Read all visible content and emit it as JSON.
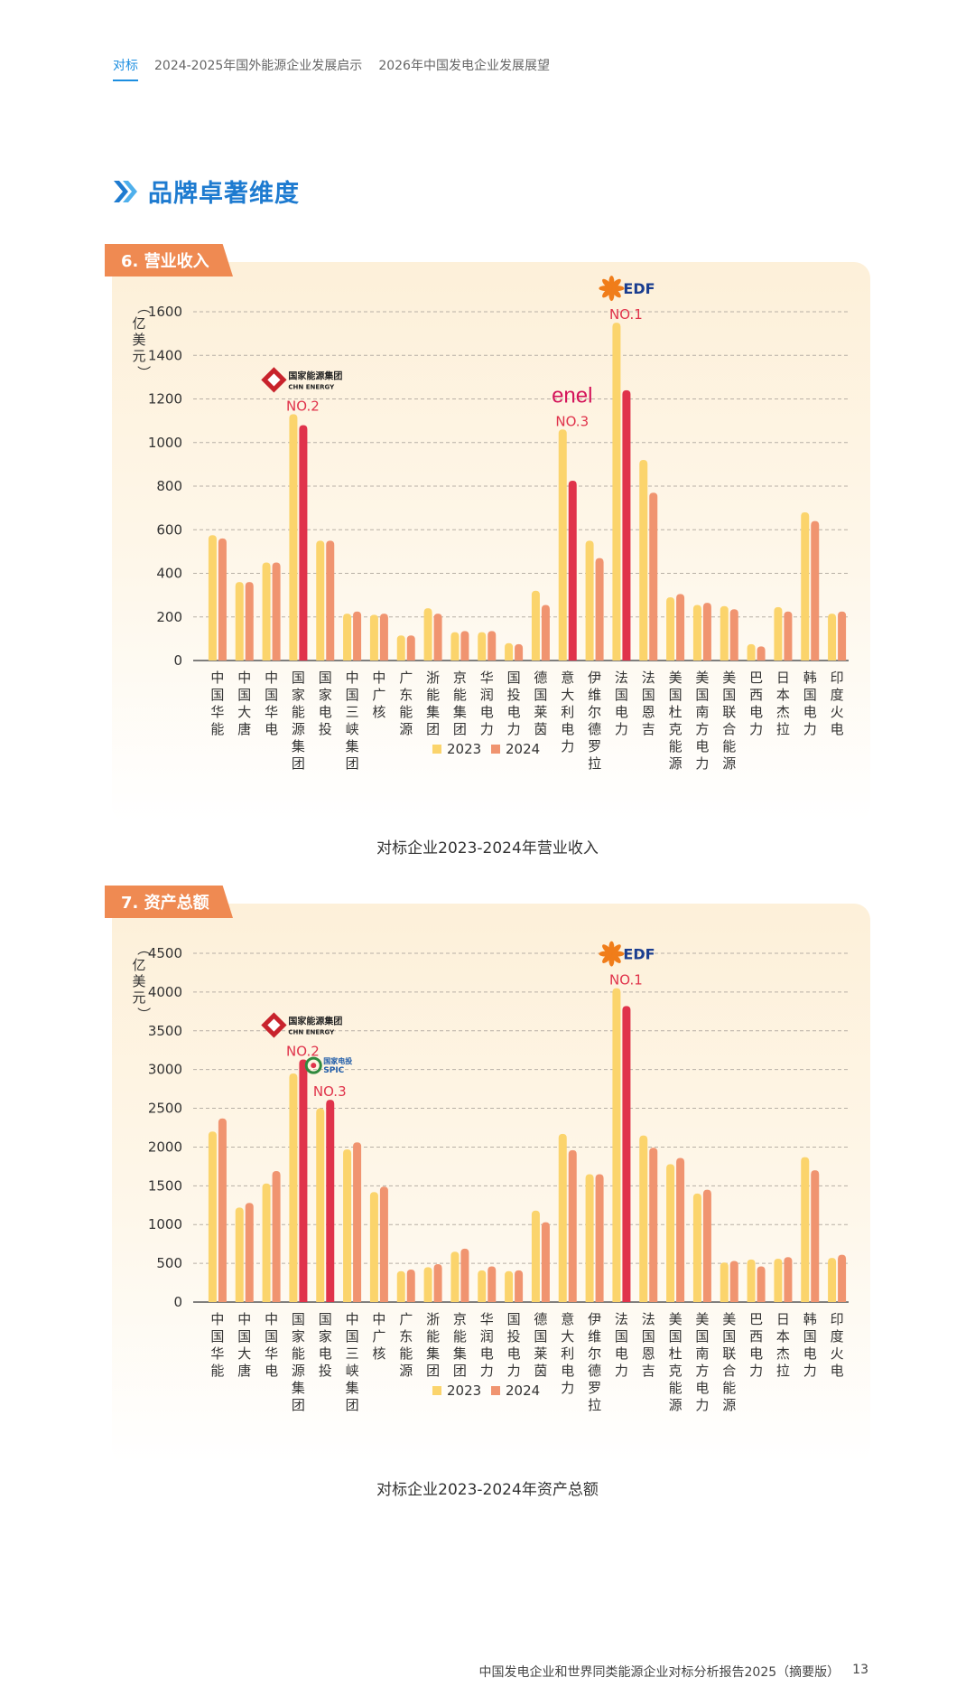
{
  "nav": {
    "items": [
      "对标",
      "2024-2025年国外能源企业发展启示",
      "2026年中国发电企业发展展望"
    ]
  },
  "section": {
    "title": "品牌卓著维度"
  },
  "colors": {
    "c2023": "#fbd46c",
    "c2024": "#f09470",
    "highlight": "#e0334b",
    "accent": "#1e7bd0",
    "tag": "#ef8a52"
  },
  "companies": [
    "中国华能",
    "中国大唐",
    "中国华电",
    "国家能源集团",
    "国家电投",
    "中国三峡集团",
    "中广核",
    "广东能源",
    "浙能集团",
    "京能集团",
    "华润电力",
    "国投电力",
    "德国莱茵",
    "意大利电力",
    "伊维尔德罗拉",
    "法国电力",
    "法国恩吉",
    "美国杜克能源",
    "美国南方电力",
    "美国联合能源",
    "巴西电力",
    "日本杰拉",
    "韩国电力",
    "印度火电"
  ],
  "revenue": {
    "tag": "6. 营业收入",
    "caption": "对标企业2023-2024年营业收入",
    "unit": "（亿美元）",
    "legend": [
      "2023",
      "2024"
    ],
    "highlights": [
      {
        "rank": "NO.2",
        "logo_text": "国家能源集团",
        "logo_sub": "CHN ENERGY",
        "logo": "chn"
      },
      {
        "rank": "NO.3",
        "logo_text": "enel",
        "logo": "enel"
      },
      {
        "rank": "NO.1",
        "logo_text": "EDF",
        "logo": "edf"
      }
    ]
  },
  "assets": {
    "tag": "7. 资产总额",
    "caption": "对标企业2023-2024年资产总额",
    "unit": "（亿美元）",
    "legend": [
      "2023",
      "2024"
    ],
    "highlights": [
      {
        "rank": "NO.2",
        "logo_text": "国家能源集团",
        "logo_sub": "CHN ENERGY",
        "logo": "chn"
      },
      {
        "rank": "NO.3",
        "logo_text": "国家电投",
        "logo_sub": "SPIC",
        "logo": "spic"
      },
      {
        "rank": "NO.1",
        "logo_text": "EDF",
        "logo": "edf"
      }
    ]
  },
  "chart_data": [
    {
      "type": "bar",
      "title": "对标企业2023-2024年营业收入",
      "ylabel": "（亿美元）",
      "ylim": [
        0,
        1600
      ],
      "yticks": [
        0,
        200,
        400,
        600,
        800,
        1000,
        1200,
        1400,
        1600
      ],
      "grid": true,
      "legend_position": "bottom",
      "categories": [
        "中国华能",
        "中国大唐",
        "中国华电",
        "国家能源集团",
        "国家电投",
        "中国三峡集团",
        "中广核",
        "广东能源",
        "浙能集团",
        "京能集团",
        "华润电力",
        "国投电力",
        "德国莱茵",
        "意大利电力",
        "伊维尔德罗拉",
        "法国电力",
        "法国恩吉",
        "美国杜克能源",
        "美国南方电力",
        "美国联合能源",
        "巴西电力",
        "日本杰拉",
        "韩国电力",
        "印度火电"
      ],
      "series": [
        {
          "name": "2023",
          "values": [
            575,
            360,
            450,
            1130,
            550,
            215,
            210,
            115,
            240,
            130,
            130,
            80,
            320,
            1060,
            550,
            1550,
            920,
            290,
            255,
            250,
            75,
            245,
            680,
            215
          ]
        },
        {
          "name": "2024",
          "values": [
            560,
            360,
            450,
            1080,
            550,
            225,
            215,
            115,
            215,
            135,
            135,
            75,
            255,
            825,
            470,
            1240,
            770,
            305,
            265,
            235,
            65,
            225,
            640,
            225
          ]
        }
      ],
      "highlighted": {
        "国家能源集团": "NO.2",
        "意大利电力": "NO.3",
        "法国电力": "NO.1"
      }
    },
    {
      "type": "bar",
      "title": "对标企业2023-2024年资产总额",
      "ylabel": "（亿美元）",
      "ylim": [
        0,
        4500
      ],
      "yticks": [
        0,
        500,
        1000,
        1500,
        2000,
        2500,
        3000,
        3500,
        4000,
        4500
      ],
      "grid": true,
      "legend_position": "bottom",
      "categories": [
        "中国华能",
        "中国大唐",
        "中国华电",
        "国家能源集团",
        "国家电投",
        "中国三峡集团",
        "中广核",
        "广东能源",
        "浙能集团",
        "京能集团",
        "华润电力",
        "国投电力",
        "德国莱茵",
        "意大利电力",
        "伊维尔德罗拉",
        "法国电力",
        "法国恩吉",
        "美国杜克能源",
        "美国南方电力",
        "美国联合能源",
        "巴西电力",
        "日本杰拉",
        "韩国电力",
        "印度火电"
      ],
      "series": [
        {
          "name": "2023",
          "values": [
            2200,
            1220,
            1530,
            2950,
            2500,
            1970,
            1420,
            400,
            450,
            650,
            410,
            400,
            1180,
            2170,
            1650,
            4050,
            2150,
            1780,
            1400,
            510,
            550,
            560,
            1870,
            570
          ]
        },
        {
          "name": "2024",
          "values": [
            2370,
            1280,
            1690,
            3130,
            2610,
            2060,
            1490,
            420,
            490,
            690,
            460,
            410,
            1030,
            1960,
            1650,
            3820,
            1990,
            1860,
            1450,
            530,
            460,
            580,
            1700,
            610
          ]
        }
      ],
      "highlighted": {
        "国家能源集团": "NO.2",
        "国家电投": "NO.3",
        "法国电力": "NO.1"
      }
    }
  ],
  "footer": {
    "report_title": "中国发电企业和世界同类能源企业对标分析报告2025（摘要版）",
    "page_number": "13"
  }
}
